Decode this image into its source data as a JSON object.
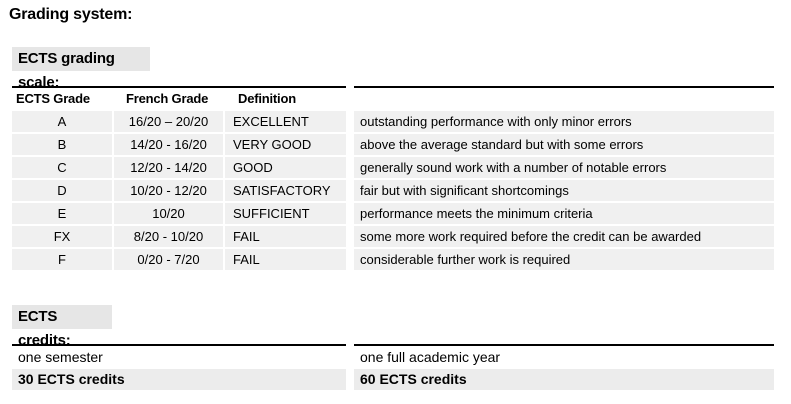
{
  "title": "Grading system:",
  "grading_section": {
    "title": "ECTS grading scale:",
    "headers": {
      "ects": "ECTS Grade",
      "french": "French Grade",
      "definition": "Definition",
      "description": ""
    },
    "rows": [
      {
        "ects": "A",
        "french": "16/20 – 20/20",
        "definition": "EXCELLENT",
        "description": "outstanding performance with only minor errors"
      },
      {
        "ects": "B",
        "french": "14/20 - 16/20",
        "definition": "VERY GOOD",
        "description": "above the average standard but with some errors"
      },
      {
        "ects": "C",
        "french": "12/20 - 14/20",
        "definition": "GOOD",
        "description": "generally sound work with a number of notable errors"
      },
      {
        "ects": "D",
        "french": "10/20 - 12/20",
        "definition": "SATISFACTORY",
        "description": "fair but with significant shortcomings"
      },
      {
        "ects": "E",
        "french": "10/20",
        "definition": "SUFFICIENT",
        "description": "performance meets the minimum criteria"
      },
      {
        "ects": "FX",
        "french": "8/20 - 10/20",
        "definition": "FAIL",
        "description": "some more work required before the credit can be awarded"
      },
      {
        "ects": "F",
        "french": "0/20 - 7/20",
        "definition": "FAIL",
        "description": "considerable further work is required"
      }
    ]
  },
  "credits_section": {
    "title": "ECTS credits:",
    "left": {
      "period": "one semester",
      "credits": "30 ECTS credits"
    },
    "right": {
      "period": "one full academic year",
      "credits": "60 ECTS credits"
    }
  }
}
